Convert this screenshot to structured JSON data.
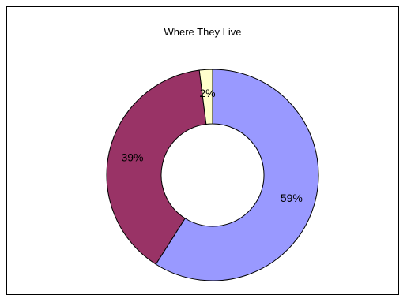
{
  "chart_data": {
    "type": "pie",
    "donut": true,
    "title": "Where They Live",
    "slices": [
      {
        "value": 59,
        "label": "59%",
        "color": "#9999ff"
      },
      {
        "value": 39,
        "label": "39%",
        "color": "#993366"
      },
      {
        "value": 2,
        "label": "2%",
        "color": "#ffffcc"
      }
    ],
    "legend": "none",
    "grid": false
  }
}
